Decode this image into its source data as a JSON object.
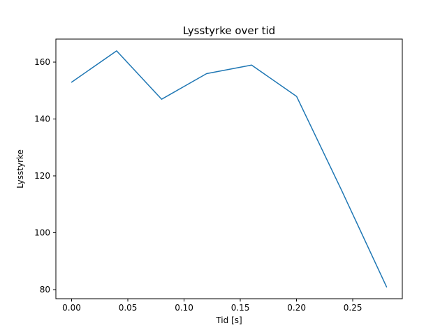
{
  "figure": {
    "title": "Lysstyrke over tid",
    "xlabel": "Tid [s]",
    "ylabel": "Lysstyrke",
    "background_color": "#ffffff",
    "text_color": "#000000",
    "spine_color": "#000000"
  },
  "chart_data": {
    "type": "line",
    "title": "Lysstyrke over tid",
    "xlabel": "Tid [s]",
    "ylabel": "Lysstyrke",
    "x": [
      0.0,
      0.04,
      0.08,
      0.12,
      0.16,
      0.2,
      0.24,
      0.28
    ],
    "y": [
      153,
      164,
      147,
      156,
      159,
      148,
      115,
      81
    ],
    "series": [
      {
        "name": "Lysstyrke",
        "x": [
          0.0,
          0.04,
          0.08,
          0.12,
          0.16,
          0.2,
          0.24,
          0.28
        ],
        "y": [
          153,
          164,
          147,
          156,
          159,
          148,
          115,
          81
        ]
      }
    ],
    "xlim": [
      -0.014,
      0.294
    ],
    "ylim": [
      76.85,
      168.15
    ],
    "xticks": [
      0.0,
      0.05,
      0.1,
      0.15,
      0.2,
      0.25
    ],
    "xtick_labels": [
      "0.00",
      "0.05",
      "0.10",
      "0.15",
      "0.20",
      "0.25"
    ],
    "yticks": [
      80,
      100,
      120,
      140,
      160
    ],
    "ytick_labels": [
      "80",
      "100",
      "120",
      "140",
      "160"
    ],
    "line_color": "#1f77b4",
    "line_width": 1.5,
    "grid": false,
    "legend_position": "none",
    "marker": "none"
  }
}
